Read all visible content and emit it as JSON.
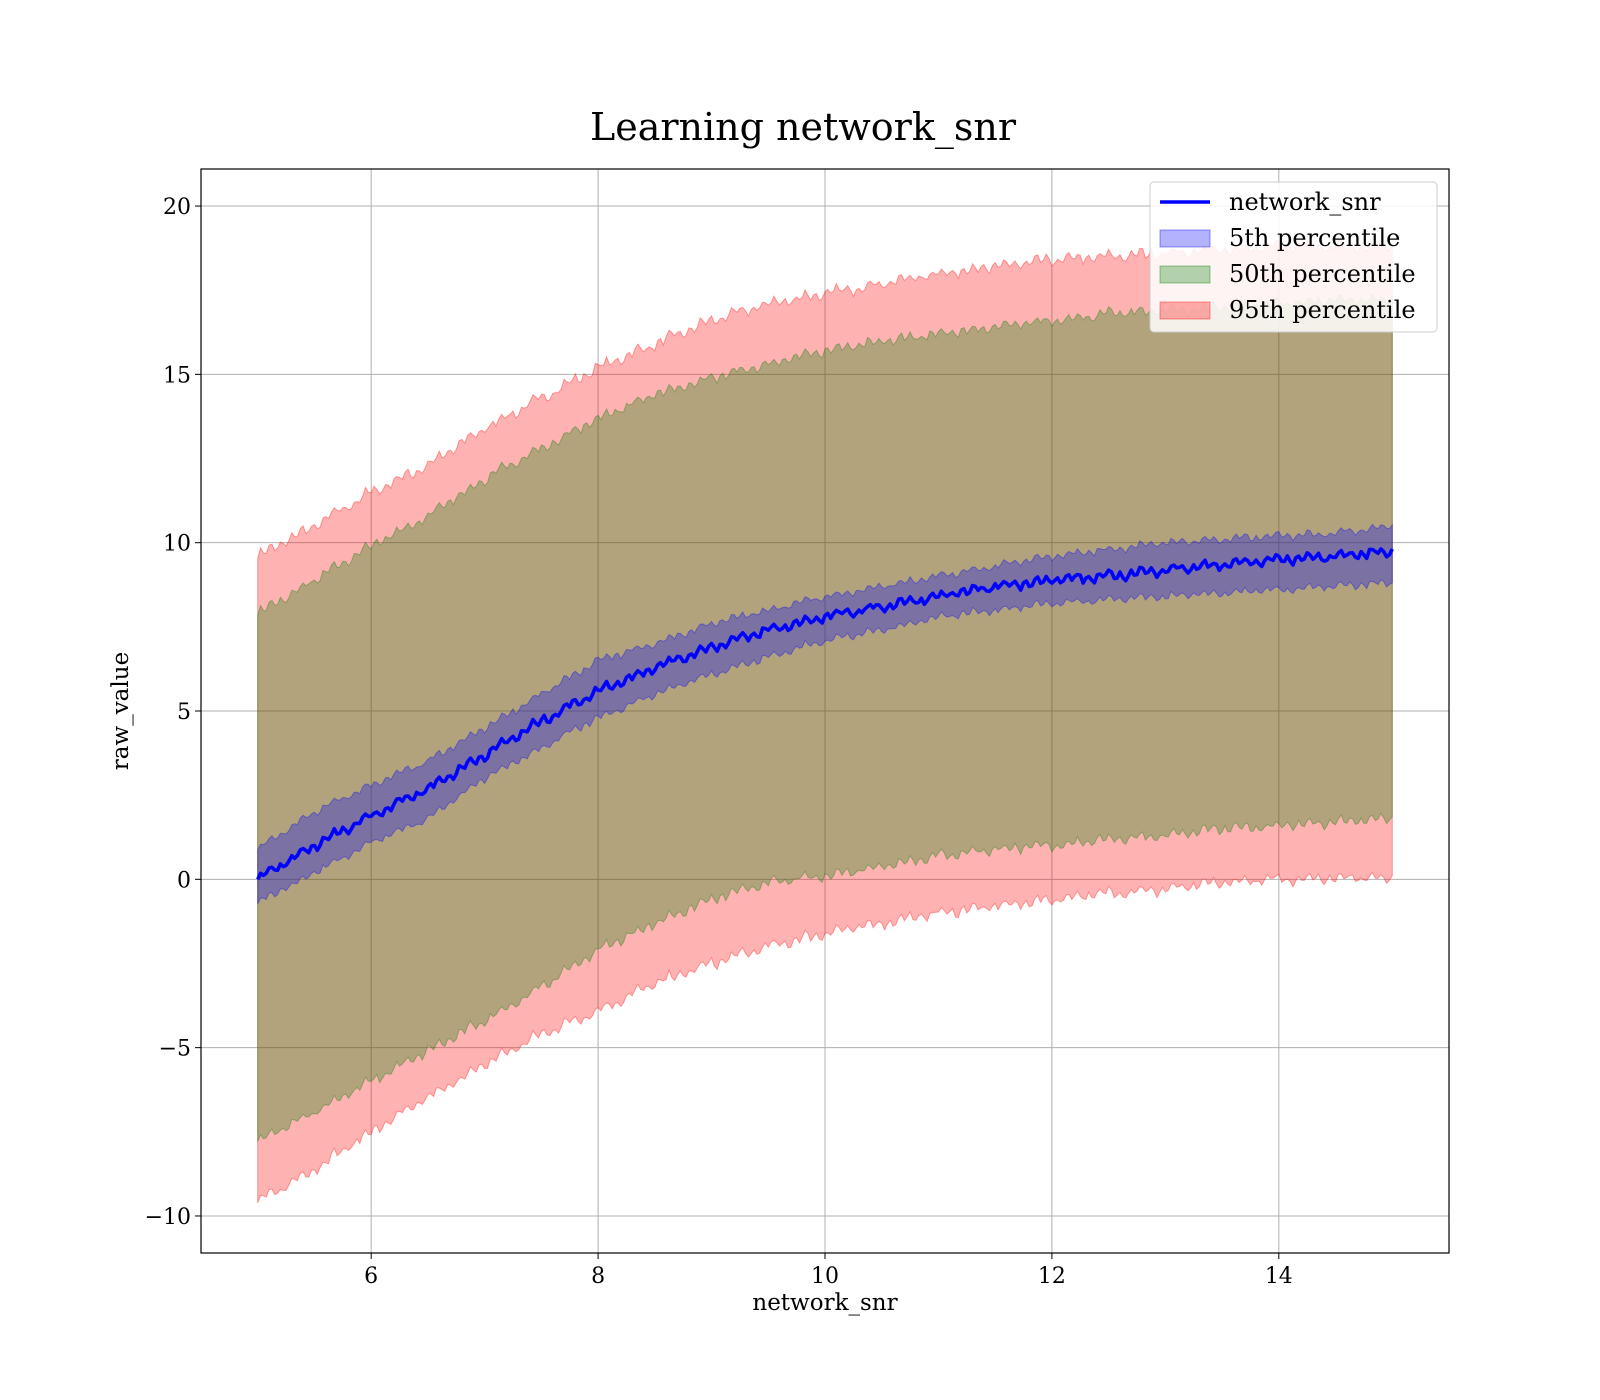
{
  "chart_data": {
    "type": "area",
    "title": "Learning network_snr",
    "xlabel": "network_snr",
    "ylabel": "raw_value",
    "xlim": [
      4.5,
      15.5
    ],
    "ylim": [
      -11.1,
      21.1
    ],
    "x_ticks": [
      6,
      8,
      10,
      12,
      14
    ],
    "x_tick_labels": [
      "6",
      "8",
      "10",
      "12",
      "14"
    ],
    "y_ticks": [
      -10,
      -5,
      0,
      5,
      10,
      15,
      20
    ],
    "y_tick_labels": [
      "−10",
      "−5",
      "0",
      "5",
      "10",
      "15",
      "20"
    ],
    "grid": true,
    "legend_position": "top-right",
    "x": [
      5.0,
      5.5,
      6.0,
      6.5,
      7.0,
      7.5,
      8.0,
      8.5,
      9.0,
      9.5,
      10.0,
      10.5,
      11.0,
      11.5,
      12.0,
      12.5,
      13.0,
      13.5,
      14.0,
      14.5,
      15.0
    ],
    "line": {
      "name": "network_snr",
      "color": "#0000ff",
      "values": [
        0.0,
        1.0,
        1.9,
        2.7,
        3.7,
        4.7,
        5.6,
        6.3,
        6.9,
        7.4,
        7.8,
        8.1,
        8.4,
        8.7,
        8.9,
        9.0,
        9.2,
        9.35,
        9.5,
        9.6,
        9.75
      ]
    },
    "bands": [
      {
        "name": "95th percentile",
        "color": "#ff0000",
        "upper": [
          9.6,
          10.5,
          11.5,
          12.3,
          13.4,
          14.3,
          15.2,
          15.9,
          16.6,
          17.1,
          17.4,
          17.7,
          18.0,
          18.2,
          18.4,
          18.5,
          18.6,
          18.7,
          18.8,
          18.8,
          18.8
        ],
        "lower": [
          -9.6,
          -8.6,
          -7.5,
          -6.5,
          -5.5,
          -4.6,
          -3.9,
          -3.1,
          -2.5,
          -2.0,
          -1.6,
          -1.3,
          -1.0,
          -0.8,
          -0.6,
          -0.4,
          -0.3,
          -0.1,
          0.0,
          0.05,
          0.05
        ]
      },
      {
        "name": "50th percentile",
        "color": "#008000",
        "upper": [
          7.9,
          8.9,
          9.9,
          10.8,
          11.9,
          12.8,
          13.7,
          14.4,
          14.9,
          15.3,
          15.7,
          16.0,
          16.2,
          16.4,
          16.6,
          16.8,
          16.9,
          17.0,
          17.1,
          17.2,
          17.2
        ],
        "lower": [
          -7.8,
          -6.9,
          -6.0,
          -5.1,
          -4.2,
          -3.2,
          -2.1,
          -1.3,
          -0.6,
          -0.1,
          0.1,
          0.4,
          0.7,
          0.9,
          1.0,
          1.2,
          1.3,
          1.5,
          1.6,
          1.7,
          1.8
        ]
      },
      {
        "name": "5th percentile",
        "color": "#0000ff",
        "upper": [
          0.9,
          2.0,
          2.8,
          3.5,
          4.5,
          5.5,
          6.5,
          7.0,
          7.6,
          8.0,
          8.4,
          8.7,
          9.0,
          9.3,
          9.6,
          9.8,
          10.0,
          10.1,
          10.2,
          10.3,
          10.5
        ],
        "lower": [
          -0.7,
          0.2,
          1.1,
          1.8,
          3.0,
          3.9,
          4.8,
          5.5,
          6.1,
          6.6,
          7.1,
          7.4,
          7.8,
          8.0,
          8.2,
          8.3,
          8.4,
          8.5,
          8.6,
          8.7,
          8.8
        ]
      }
    ],
    "legend": [
      {
        "label": "network_snr",
        "kind": "line",
        "color": "#0000ff"
      },
      {
        "label": "5th percentile",
        "kind": "patch",
        "color": "#0000ff"
      },
      {
        "label": "50th percentile",
        "kind": "patch",
        "color": "#008000"
      },
      {
        "label": "95th percentile",
        "kind": "patch",
        "color": "#ff0000"
      }
    ]
  }
}
